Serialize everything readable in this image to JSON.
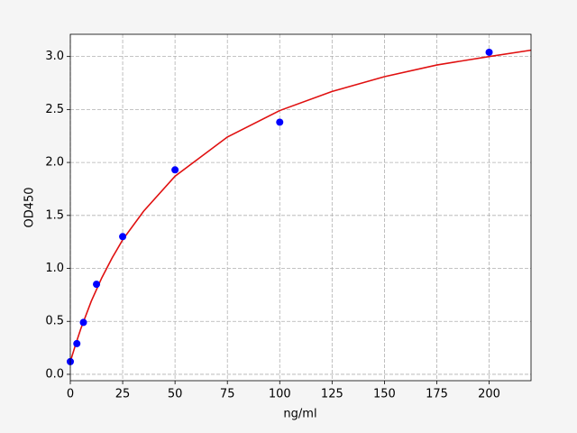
{
  "chart_data": {
    "type": "scatter",
    "xlabel": "ng/ml",
    "ylabel": "OD450",
    "xlim": [
      0,
      220
    ],
    "ylim": [
      -0.06,
      3.21
    ],
    "xticks": [
      0,
      25,
      50,
      75,
      100,
      125,
      150,
      175,
      200
    ],
    "yticks": [
      {
        "value": 0,
        "label": "0.0"
      },
      {
        "value": 0.5,
        "label": "0.5"
      },
      {
        "value": 1,
        "label": "1.0"
      },
      {
        "value": 1.5,
        "label": "1.5"
      },
      {
        "value": 2,
        "label": "2.0"
      },
      {
        "value": 2.5,
        "label": "2.5"
      },
      {
        "value": 3,
        "label": "3.0"
      }
    ],
    "grid": true,
    "series": [
      {
        "type": "line",
        "color": "#e01010",
        "x": [
          0,
          2.5,
          5,
          10,
          15,
          20,
          25,
          35,
          50,
          75,
          100,
          125,
          150,
          175,
          200,
          220
        ],
        "values": [
          0.12,
          0.28,
          0.43,
          0.69,
          0.91,
          1.1,
          1.27,
          1.54,
          1.87,
          2.24,
          2.49,
          2.67,
          2.81,
          2.92,
          3.0,
          3.06
        ]
      },
      {
        "type": "scatter",
        "color": "#0000ff",
        "x": [
          0,
          3.125,
          6.25,
          12.5,
          25,
          50,
          100,
          200
        ],
        "values": [
          0.12,
          0.29,
          0.49,
          0.85,
          1.3,
          1.93,
          2.38,
          3.04
        ]
      }
    ]
  }
}
